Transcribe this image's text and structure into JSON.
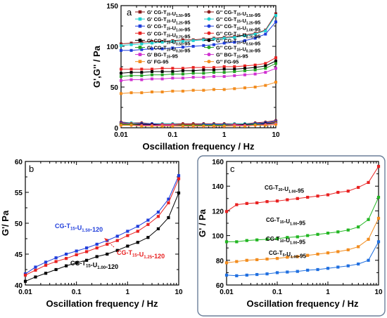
{
  "chart_data": [
    {
      "panel_label": "a",
      "type": "line",
      "xscale": "log",
      "xlim": [
        0.01,
        10
      ],
      "ylim": [
        0,
        150
      ],
      "xticks": [
        "0.01",
        "0.1",
        "1",
        "10"
      ],
      "yticks": [
        "0",
        "50",
        "100",
        "150"
      ],
      "xlabel": "Oscillation frequency / Hz",
      "ylabel": "G',G'' / Pa",
      "legend_placement": "top",
      "series": [
        {
          "mod": "G'",
          "sample": "CG-T15-U1.50-95",
          "color": "#8b1a1a",
          "marker": "square",
          "filled": true,
          "x": [
            0.01,
            0.0158,
            0.0251,
            0.0398,
            0.063,
            0.1,
            0.158,
            0.251,
            0.398,
            0.63,
            1,
            1.58,
            2.51,
            3.98,
            6.3,
            10
          ],
          "y": [
            103,
            104,
            105,
            106,
            106,
            107,
            108,
            108,
            109,
            110,
            111,
            112,
            114,
            116,
            120,
            140
          ]
        },
        {
          "mod": "G'",
          "sample": "CG-T15-U1.25-95",
          "color": "#20d0d0",
          "marker": "square",
          "filled": true,
          "x": [
            0.01,
            0.0158,
            0.0251,
            0.0398,
            0.063,
            0.1,
            0.158,
            0.251,
            0.398,
            0.63,
            1,
            1.58,
            2.51,
            3.98,
            6.3,
            10
          ],
          "y": [
            101,
            102,
            103,
            104,
            105,
            106,
            106,
            107,
            108,
            109,
            110,
            111,
            113,
            115,
            119,
            138
          ]
        },
        {
          "mod": "G'",
          "sample": "CG-T15-U1.00-95",
          "color": "#1f3ddb",
          "marker": "square",
          "filled": true,
          "x": [
            0.01,
            0.0158,
            0.0251,
            0.0398,
            0.063,
            0.1,
            0.158,
            0.251,
            0.398,
            0.63,
            1,
            1.58,
            2.51,
            3.98,
            6.3,
            10
          ],
          "y": [
            95,
            95,
            96,
            97,
            97,
            98,
            99,
            100,
            101,
            102,
            104,
            105,
            107,
            110,
            115,
            130
          ]
        },
        {
          "mod": "G'",
          "sample": "CG-T15-U0.75-95",
          "color": "#e82020",
          "marker": "square",
          "filled": true,
          "x": [
            0.01,
            0.0158,
            0.0251,
            0.0398,
            0.063,
            0.1,
            0.158,
            0.251,
            0.398,
            0.63,
            1,
            1.58,
            2.51,
            3.98,
            6.3,
            10
          ],
          "y": [
            72,
            72,
            72,
            72,
            73,
            73,
            73,
            74,
            74,
            74,
            75,
            75,
            76,
            77,
            79,
            86
          ]
        },
        {
          "mod": "G'",
          "sample": "CG-T15-U0.50-95",
          "color": "#000000",
          "marker": "square",
          "filled": true,
          "x": [
            0.01,
            0.0158,
            0.0251,
            0.0398,
            0.063,
            0.1,
            0.158,
            0.251,
            0.398,
            0.63,
            1,
            1.58,
            2.51,
            3.98,
            6.3,
            10
          ],
          "y": [
            67,
            68,
            68,
            69,
            69,
            69,
            70,
            70,
            71,
            71,
            72,
            72,
            73,
            74,
            76,
            82
          ]
        },
        {
          "mod": "G'",
          "sample": "CG-T15-U0.30-95",
          "color": "#22a022",
          "marker": "square",
          "filled": true,
          "x": [
            0.01,
            0.0158,
            0.0251,
            0.0398,
            0.063,
            0.1,
            0.158,
            0.251,
            0.398,
            0.63,
            1,
            1.58,
            2.51,
            3.98,
            6.3,
            10
          ],
          "y": [
            63,
            64,
            64,
            65,
            65,
            66,
            66,
            67,
            67,
            68,
            68,
            69,
            70,
            71,
            73,
            79
          ]
        },
        {
          "mod": "G'",
          "sample": "BG-T15-95",
          "color": "#d030d0",
          "marker": "square",
          "filled": true,
          "x": [
            0.01,
            0.0158,
            0.0251,
            0.0398,
            0.063,
            0.1,
            0.158,
            0.251,
            0.398,
            0.63,
            1,
            1.58,
            2.51,
            3.98,
            6.3,
            10
          ],
          "y": [
            58,
            59,
            59,
            60,
            60,
            61,
            61,
            62,
            62,
            63,
            63,
            64,
            65,
            66,
            68,
            73
          ]
        },
        {
          "mod": "G'",
          "sample": "FG-95",
          "color": "#f28c1e",
          "marker": "square",
          "filled": true,
          "x": [
            0.01,
            0.0158,
            0.0251,
            0.0398,
            0.063,
            0.1,
            0.158,
            0.251,
            0.398,
            0.63,
            1,
            1.58,
            2.51,
            3.98,
            6.3,
            10
          ],
          "y": [
            42,
            43,
            43,
            44,
            44,
            45,
            45,
            46,
            46,
            47,
            47,
            48,
            49,
            50,
            52,
            56
          ]
        },
        {
          "mod": "G''",
          "sample": "CG-T15-U1.50-95",
          "color": "#8b1a1a",
          "marker": "circle",
          "filled": true,
          "x": [
            0.01,
            0.0158,
            0.0251,
            0.0398,
            0.063,
            0.1,
            0.158,
            0.251,
            0.398,
            0.63,
            1,
            1.58,
            2.51,
            3.98,
            6.3,
            10
          ],
          "y": [
            7,
            6,
            6,
            5,
            5,
            5,
            5,
            5,
            5,
            5,
            5,
            5,
            5,
            6,
            7,
            9
          ]
        },
        {
          "mod": "G''",
          "sample": "CG-T15-U1.25-95",
          "color": "#20d0d0",
          "marker": "circle",
          "filled": true,
          "x": [
            0.01,
            0.0158,
            0.0251,
            0.0398,
            0.063,
            0.1,
            0.158,
            0.251,
            0.398,
            0.63,
            1,
            1.58,
            2.51,
            3.98,
            6.3,
            10
          ],
          "y": [
            6,
            6,
            5,
            5,
            5,
            5,
            4,
            4,
            4,
            4,
            4,
            5,
            5,
            5,
            6,
            8
          ]
        },
        {
          "mod": "G''",
          "sample": "CG-T15-U1.00-95",
          "color": "#1f3ddb",
          "marker": "circle",
          "filled": true,
          "x": [
            0.01,
            0.0158,
            0.0251,
            0.0398,
            0.063,
            0.1,
            0.158,
            0.251,
            0.398,
            0.63,
            1,
            1.58,
            2.51,
            3.98,
            6.3,
            10
          ],
          "y": [
            6,
            5,
            5,
            5,
            4,
            4,
            4,
            4,
            4,
            4,
            4,
            4,
            4,
            5,
            6,
            8
          ]
        },
        {
          "mod": "G''",
          "sample": "CG-T15-U0.75-95",
          "color": "#e82020",
          "marker": "circle",
          "filled": true,
          "x": [
            0.01,
            0.0158,
            0.0251,
            0.0398,
            0.063,
            0.1,
            0.158,
            0.251,
            0.398,
            0.63,
            1,
            1.58,
            2.51,
            3.98,
            6.3,
            10
          ],
          "y": [
            5,
            5,
            4,
            4,
            4,
            4,
            4,
            4,
            3,
            3,
            3,
            4,
            4,
            4,
            5,
            7
          ]
        },
        {
          "mod": "G''",
          "sample": "CG-T15-U0.50-95",
          "color": "#000000",
          "marker": "circle",
          "filled": true,
          "x": [
            0.01,
            0.0158,
            0.0251,
            0.0398,
            0.063,
            0.1,
            0.158,
            0.251,
            0.398,
            0.63,
            1,
            1.58,
            2.51,
            3.98,
            6.3,
            10
          ],
          "y": [
            4,
            4,
            4,
            4,
            3,
            3,
            3,
            3,
            3,
            3,
            3,
            3,
            4,
            4,
            5,
            6
          ]
        },
        {
          "mod": "G''",
          "sample": "CG-T15-U0.30-95",
          "color": "#22a022",
          "marker": "circle",
          "filled": true,
          "x": [
            0.01,
            0.0158,
            0.0251,
            0.0398,
            0.063,
            0.1,
            0.158,
            0.251,
            0.398,
            0.63,
            1,
            1.58,
            2.51,
            3.98,
            6.3,
            10
          ],
          "y": [
            4,
            4,
            3,
            3,
            3,
            3,
            3,
            3,
            3,
            3,
            3,
            3,
            3,
            4,
            4,
            6
          ]
        },
        {
          "mod": "G''",
          "sample": "BG-T15-95",
          "color": "#d030d0",
          "marker": "circle",
          "filled": true,
          "x": [
            0.01,
            0.0158,
            0.0251,
            0.0398,
            0.063,
            0.1,
            0.158,
            0.251,
            0.398,
            0.63,
            1,
            1.58,
            2.51,
            3.98,
            6.3,
            10
          ],
          "y": [
            3,
            3,
            3,
            3,
            3,
            3,
            2,
            2,
            2,
            2,
            2,
            3,
            3,
            3,
            4,
            5
          ]
        },
        {
          "mod": "G''",
          "sample": "FG-95",
          "color": "#f28c1e",
          "marker": "circle",
          "filled": true,
          "x": [
            0.01,
            0.0158,
            0.0251,
            0.0398,
            0.063,
            0.1,
            0.158,
            0.251,
            0.398,
            0.63,
            1,
            1.58,
            2.51,
            3.98,
            6.3,
            10
          ],
          "y": [
            3,
            3,
            2,
            2,
            2,
            2,
            2,
            2,
            2,
            2,
            2,
            2,
            2,
            3,
            3,
            4
          ]
        }
      ]
    },
    {
      "panel_label": "b",
      "type": "line",
      "xscale": "log",
      "xlim": [
        0.01,
        10
      ],
      "ylim": [
        40,
        60
      ],
      "xticks": [
        "0.01",
        "0.1",
        "1",
        "10"
      ],
      "yticks": [
        "40",
        "45",
        "50",
        "55",
        "60"
      ],
      "xlabel": "Oscillation frequency / Hz",
      "ylabel": "G'/ Pa",
      "series": [
        {
          "name": "CG-T15-U1.50-120",
          "color": "#1f3ddb",
          "label_color": "#1f3ddb",
          "marker": "square",
          "x": [
            0.01,
            0.0158,
            0.0251,
            0.0398,
            0.063,
            0.1,
            0.158,
            0.251,
            0.398,
            0.63,
            1,
            1.58,
            2.51,
            3.98,
            6.3,
            10
          ],
          "y": [
            41.8,
            42.9,
            43.7,
            44.4,
            45.0,
            45.5,
            46.0,
            46.6,
            47.2,
            47.9,
            48.7,
            49.5,
            50.5,
            51.8,
            53.9,
            57.7
          ]
        },
        {
          "name": "CG-T15-U1.25-120",
          "color": "#e82020",
          "label_color": "#e82020",
          "marker": "square",
          "x": [
            0.01,
            0.0158,
            0.0251,
            0.0398,
            0.063,
            0.1,
            0.158,
            0.251,
            0.398,
            0.63,
            1,
            1.58,
            2.51,
            3.98,
            6.3,
            10
          ],
          "y": [
            41.6,
            42.4,
            43.2,
            43.8,
            44.3,
            44.9,
            45.4,
            46.0,
            46.6,
            47.2,
            48.0,
            48.7,
            49.8,
            51.1,
            53.3,
            57.2
          ]
        },
        {
          "name": "CG-T15-U1.00-120",
          "color": "#000000",
          "label_color": "#000000",
          "marker": "square",
          "x": [
            0.01,
            0.0158,
            0.0251,
            0.0398,
            0.063,
            0.1,
            0.158,
            0.251,
            0.398,
            0.63,
            1,
            1.58,
            2.51,
            3.98,
            6.3,
            10
          ],
          "y": [
            40.6,
            41.3,
            41.9,
            42.5,
            43.1,
            43.6,
            44.0,
            44.6,
            45.0,
            45.6,
            46.3,
            46.9,
            47.7,
            49.1,
            50.9,
            54.9
          ]
        }
      ]
    },
    {
      "panel_label": "c",
      "type": "line",
      "xscale": "log",
      "xlim": [
        0.01,
        10
      ],
      "ylim": [
        60,
        160
      ],
      "xticks": [
        "0.01",
        "0.1",
        "1",
        "10"
      ],
      "yticks": [
        "60",
        "80",
        "100",
        "120",
        "140",
        "160"
      ],
      "xlabel": "Oscillation frequency / Hz",
      "ylabel": "G' / Pa",
      "series": [
        {
          "name": "CG-T20-U1.00-95",
          "color": "#e82020",
          "marker": "square",
          "x": [
            0.01,
            0.0158,
            0.0251,
            0.0398,
            0.063,
            0.1,
            0.158,
            0.251,
            0.398,
            0.63,
            1,
            1.58,
            2.51,
            3.98,
            6.3,
            10
          ],
          "y": [
            119.5,
            125,
            126,
            126.5,
            127.5,
            128,
            129,
            130,
            131,
            132,
            133,
            135,
            136,
            139,
            143,
            156
          ]
        },
        {
          "name": "CG-T15-U1.00-95",
          "color": "#22b622",
          "marker": "square",
          "x": [
            0.01,
            0.0158,
            0.0251,
            0.0398,
            0.063,
            0.1,
            0.158,
            0.251,
            0.398,
            0.63,
            1,
            1.58,
            2.51,
            3.98,
            6.3,
            10
          ],
          "y": [
            95,
            95,
            96,
            96.5,
            97,
            97.5,
            98.5,
            99,
            100,
            101,
            102,
            103,
            104.5,
            107,
            113,
            131
          ]
        },
        {
          "name": "CG-T10-U1.00-95",
          "color": "#f28c1e",
          "marker": "square",
          "x": [
            0.01,
            0.0158,
            0.0251,
            0.0398,
            0.063,
            0.1,
            0.158,
            0.251,
            0.398,
            0.63,
            1,
            1.58,
            2.51,
            3.98,
            6.3,
            10
          ],
          "y": [
            78,
            79,
            80,
            80.5,
            81,
            81.5,
            82.5,
            83,
            84,
            85,
            86,
            87,
            88.5,
            91,
            97,
            114
          ]
        },
        {
          "name": "CG-T5-U1.00-95",
          "color": "#1f6fe0",
          "marker": "square",
          "x": [
            0.01,
            0.0158,
            0.0251,
            0.0398,
            0.063,
            0.1,
            0.158,
            0.251,
            0.398,
            0.63,
            1,
            1.58,
            2.51,
            3.98,
            6.3,
            10
          ],
          "y": [
            68,
            67.5,
            68,
            68.5,
            69,
            70,
            70.5,
            71,
            72,
            72.5,
            73.5,
            74.5,
            75.5,
            77,
            80,
            95
          ]
        }
      ]
    }
  ]
}
